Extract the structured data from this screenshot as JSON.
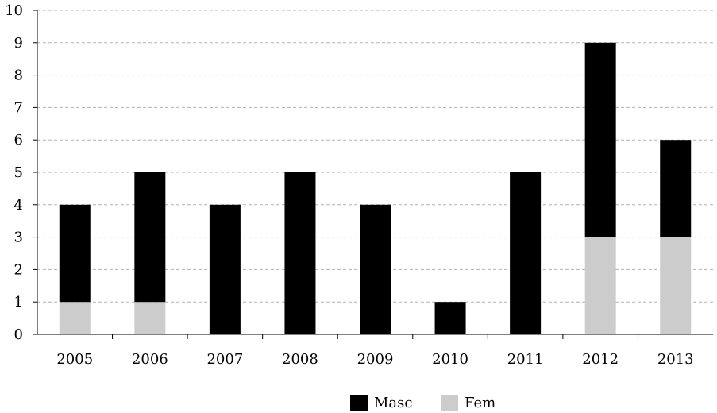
{
  "chart_data": {
    "type": "bar",
    "stacked": true,
    "categories": [
      "2005",
      "2006",
      "2007",
      "2008",
      "2009",
      "2010",
      "2011",
      "2012",
      "2013"
    ],
    "series": [
      {
        "name": "Fem",
        "color": "#cccccc",
        "values": [
          1,
          1,
          0,
          0,
          0,
          0,
          0,
          3,
          3
        ]
      },
      {
        "name": "Masc",
        "color": "#000000",
        "values": [
          3,
          4,
          4,
          5,
          4,
          1,
          5,
          6,
          3
        ]
      }
    ],
    "legend_order": [
      "Masc",
      "Fem"
    ],
    "title": "",
    "xlabel": "",
    "ylabel": "",
    "ylim": [
      0,
      10
    ],
    "yticks": [
      "0",
      "1",
      "2",
      "3",
      "4",
      "5",
      "6",
      "7",
      "8",
      "9",
      "10"
    ],
    "grid": true,
    "grid_style": "dashed",
    "legend_position": "bottom-center"
  }
}
